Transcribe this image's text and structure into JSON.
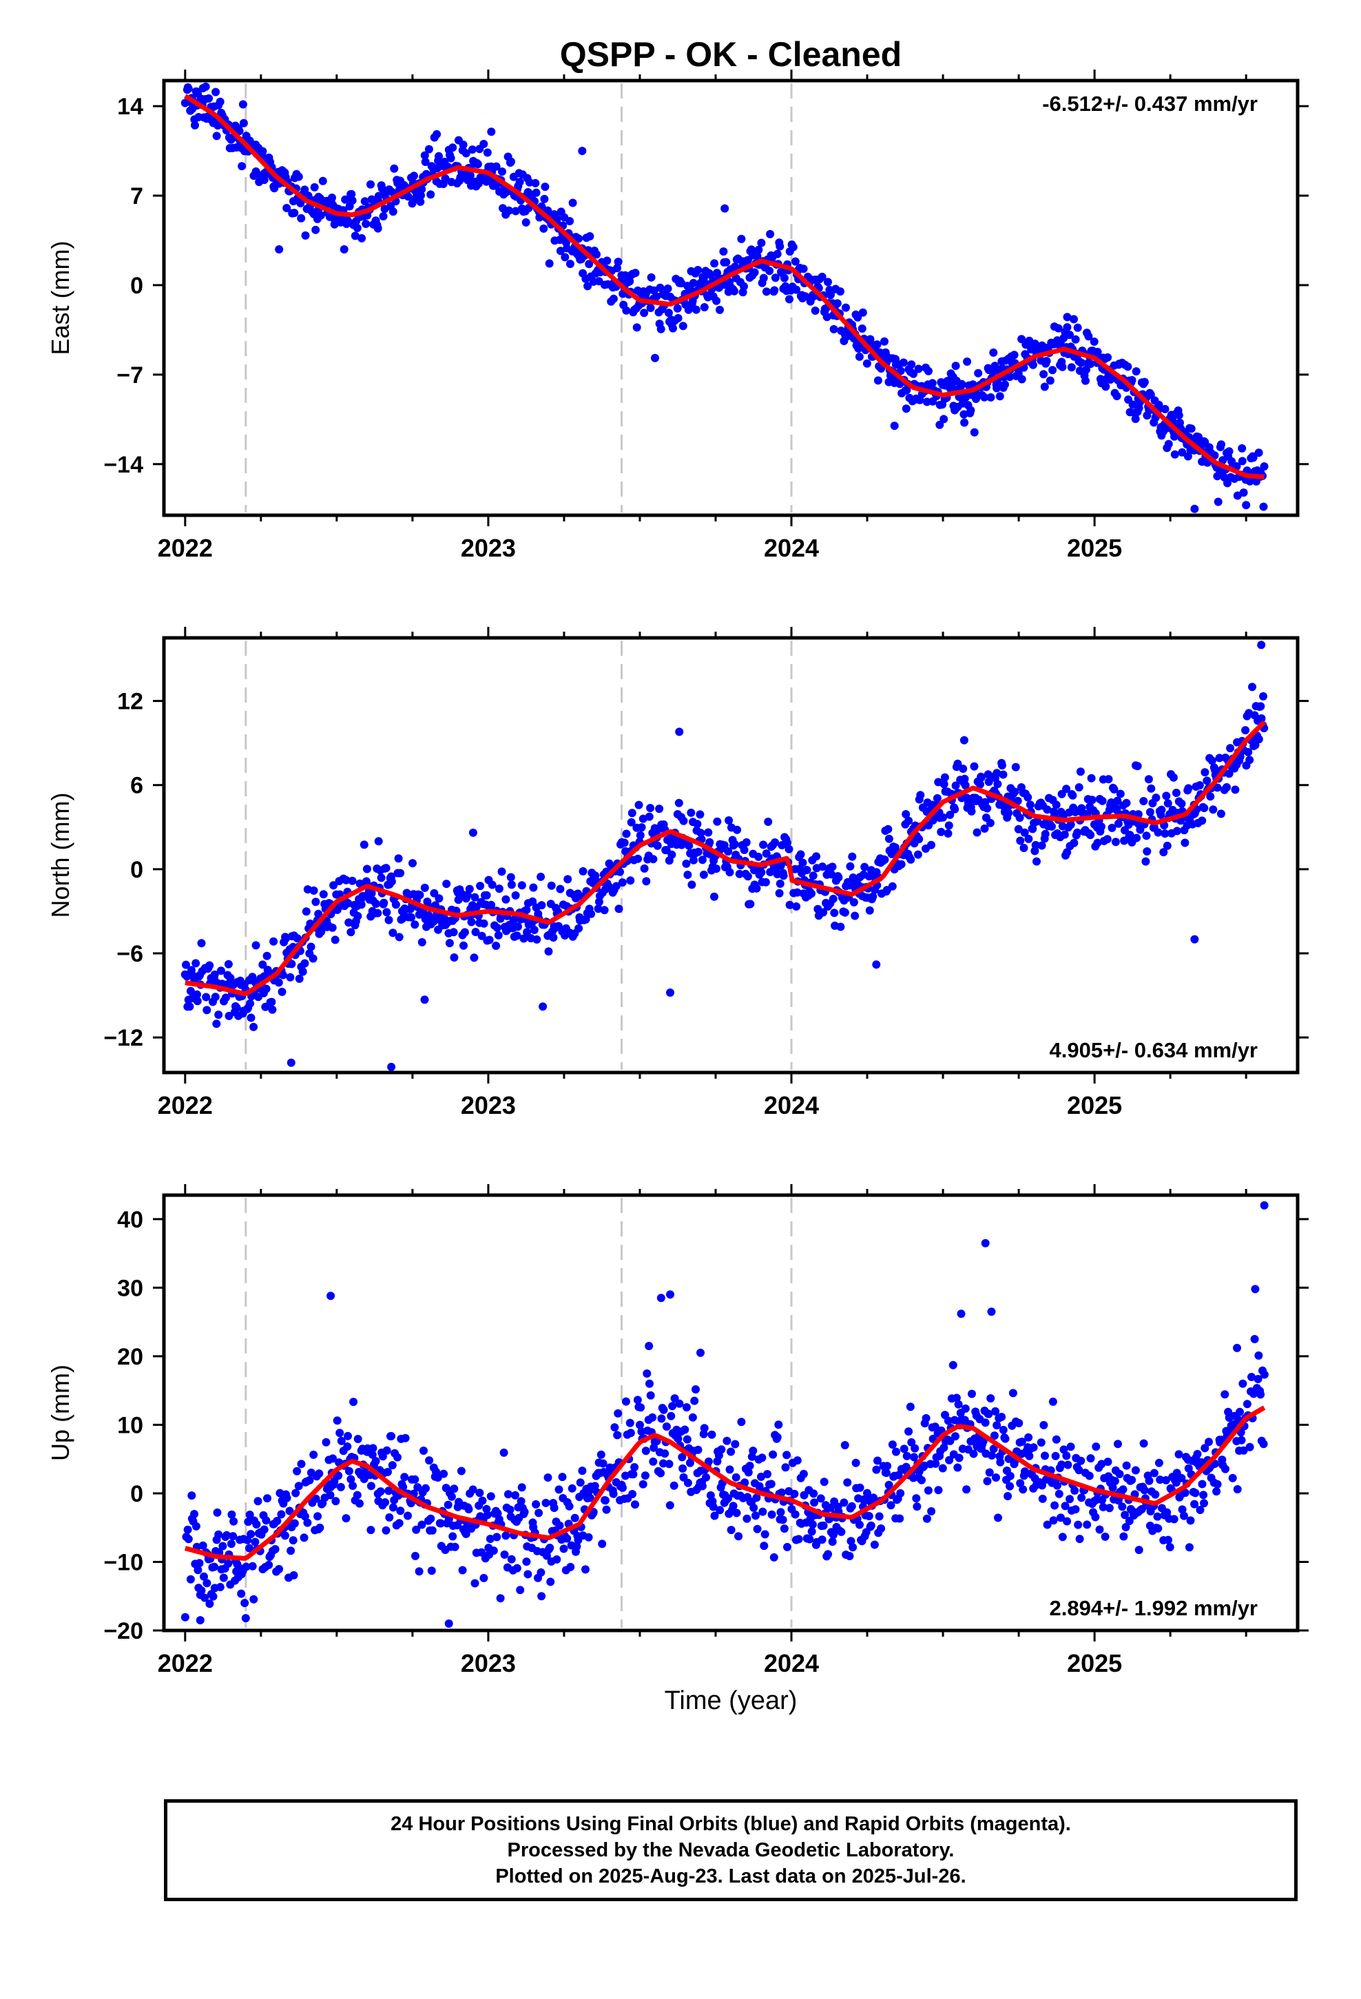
{
  "title": "QSPP  - OK - Cleaned",
  "footer": {
    "line1": "24 Hour Positions Using Final Orbits (blue) and Rapid Orbits (magenta).",
    "line2": "Processed by the Nevada Geodetic Laboratory.",
    "line3": "Plotted on 2025-Aug-23. Last data on 2025-Jul-26."
  },
  "colors": {
    "final_orbits": "#0000ff",
    "rapid_orbits": "#ff00ff",
    "model_fit": "#ff0000",
    "event_lines": "#c8c8c8"
  },
  "chart_data": [
    {
      "type": "scatter",
      "component": "East",
      "ylabel": "East (mm)",
      "xlabel": "",
      "xlim": [
        2021.93,
        2025.67
      ],
      "ylim": [
        -18,
        16
      ],
      "yticks": [
        -14,
        -7,
        0,
        7,
        14
      ],
      "ytick_labels": [
        "−14",
        "−7",
        "0",
        "7",
        "14"
      ],
      "xticks": [
        2022,
        2023,
        2024,
        2025
      ],
      "xtick_labels": [
        "2022",
        "2023",
        "2024",
        "2025"
      ],
      "event_lines": [
        2022.2,
        2023.44,
        2024.0
      ],
      "rate_label": "-6.512+/- 0.437 mm/yr",
      "rate_position": "top-right",
      "noise_sd": 1.0,
      "model": {
        "name": "",
        "x": [
          2022.0,
          2022.1,
          2022.2,
          2022.3,
          2022.4,
          2022.5,
          2022.55,
          2022.6,
          2022.7,
          2022.8,
          2022.9,
          2023.0,
          2023.1,
          2023.2,
          2023.3,
          2023.4,
          2023.45,
          2023.5,
          2023.6,
          2023.7,
          2023.8,
          2023.9,
          2024.0,
          2024.1,
          2024.2,
          2024.3,
          2024.4,
          2024.5,
          2024.6,
          2024.7,
          2024.8,
          2024.9,
          2025.0,
          2025.1,
          2025.2,
          2025.3,
          2025.4,
          2025.5,
          2025.56
        ],
        "y": [
          14.8,
          13.3,
          11.0,
          8.5,
          6.6,
          5.6,
          5.5,
          5.8,
          7.0,
          8.3,
          9.2,
          8.8,
          7.2,
          5.2,
          3.0,
          0.8,
          -0.3,
          -1.2,
          -1.5,
          -0.5,
          0.8,
          1.9,
          1.3,
          -0.9,
          -3.5,
          -6.1,
          -8.0,
          -8.6,
          -8.2,
          -6.9,
          -5.6,
          -5.0,
          -5.7,
          -7.5,
          -9.8,
          -12.0,
          -13.9,
          -14.9,
          -15.0
        ]
      },
      "outliers": [
        {
          "x": 2023.31,
          "y": 10.5
        },
        {
          "x": 2023.78,
          "y": 6.0
        },
        {
          "x": 2023.01,
          "y": 12.0
        },
        {
          "x": 2022.83,
          "y": 11.8
        },
        {
          "x": 2024.91,
          "y": -2.5
        },
        {
          "x": 2025.33,
          "y": -17.5
        },
        {
          "x": 2025.5,
          "y": -17.2
        },
        {
          "x": 2024.34,
          "y": -11.0
        },
        {
          "x": 2023.55,
          "y": -5.7
        },
        {
          "x": 2022.31,
          "y": 2.8
        }
      ]
    },
    {
      "type": "scatter",
      "component": "North",
      "ylabel": "North (mm)",
      "xlabel": "",
      "xlim": [
        2021.93,
        2025.67
      ],
      "ylim": [
        -14.5,
        16.5
      ],
      "yticks": [
        -12,
        -6,
        0,
        6,
        12
      ],
      "ytick_labels": [
        "−12",
        "−6",
        "0",
        "6",
        "12"
      ],
      "xticks": [
        2022,
        2023,
        2024,
        2025
      ],
      "xtick_labels": [
        "2022",
        "2023",
        "2024",
        "2025"
      ],
      "event_lines": [
        2022.2,
        2023.44,
        2024.0
      ],
      "rate_label": "4.905+/- 0.634 mm/yr",
      "rate_position": "bottom-right",
      "noise_sd": 1.25,
      "model": {
        "name": "",
        "x": [
          2022.0,
          2022.1,
          2022.2,
          2022.3,
          2022.4,
          2022.5,
          2022.6,
          2022.7,
          2022.8,
          2022.9,
          2023.0,
          2023.1,
          2023.2,
          2023.3,
          2023.44,
          2023.5,
          2023.6,
          2023.7,
          2023.8,
          2023.9,
          2023.99,
          2024.0,
          2024.1,
          2024.2,
          2024.3,
          2024.4,
          2024.5,
          2024.6,
          2024.7,
          2024.8,
          2024.9,
          2025.0,
          2025.1,
          2025.2,
          2025.3,
          2025.4,
          2025.5,
          2025.56
        ],
        "y": [
          -8.1,
          -8.4,
          -8.9,
          -7.5,
          -4.8,
          -2.3,
          -1.2,
          -1.9,
          -2.8,
          -3.3,
          -3.0,
          -3.2,
          -3.8,
          -2.5,
          0.5,
          1.7,
          2.7,
          1.8,
          0.6,
          0.3,
          0.8,
          -0.8,
          -1.3,
          -1.8,
          -0.6,
          2.5,
          4.8,
          5.8,
          5.0,
          3.8,
          3.5,
          3.7,
          3.8,
          3.3,
          3.9,
          6.3,
          9.2,
          10.5
        ]
      },
      "outliers": [
        {
          "x": 2025.55,
          "y": 16.0
        },
        {
          "x": 2025.52,
          "y": 13.0
        },
        {
          "x": 2023.63,
          "y": 9.8
        },
        {
          "x": 2023.6,
          "y": -8.8
        },
        {
          "x": 2025.33,
          "y": -5.0
        },
        {
          "x": 2022.35,
          "y": -13.8
        },
        {
          "x": 2022.68,
          "y": -14.1
        },
        {
          "x": 2022.79,
          "y": -9.3
        },
        {
          "x": 2022.95,
          "y": 2.6
        },
        {
          "x": 2024.57,
          "y": 9.2
        },
        {
          "x": 2024.28,
          "y": -6.8
        },
        {
          "x": 2023.18,
          "y": -9.8
        }
      ]
    },
    {
      "type": "scatter",
      "component": "Up",
      "ylabel": "Up (mm)",
      "xlabel": "Time (year)",
      "xlim": [
        2021.93,
        2025.67
      ],
      "ylim": [
        -20,
        43.5
      ],
      "yticks": [
        -20,
        -10,
        0,
        10,
        20,
        30,
        40
      ],
      "ytick_labels": [
        "−20",
        "−10",
        "0",
        "10",
        "20",
        "30",
        "40"
      ],
      "xticks": [
        2022,
        2023,
        2024,
        2025
      ],
      "xtick_labels": [
        "2022",
        "2023",
        "2024",
        "2025"
      ],
      "event_lines": [
        2022.2,
        2023.44,
        2024.0
      ],
      "rate_label": "2.894+/- 1.992 mm/yr",
      "rate_position": "bottom-right",
      "noise_sd": 3.8,
      "model": {
        "name": "",
        "x": [
          2022.0,
          2022.1,
          2022.2,
          2022.3,
          2022.4,
          2022.5,
          2022.55,
          2022.6,
          2022.7,
          2022.8,
          2022.9,
          2023.0,
          2023.1,
          2023.2,
          2023.3,
          2023.4,
          2023.5,
          2023.55,
          2023.6,
          2023.7,
          2023.8,
          2023.9,
          2024.0,
          2024.1,
          2024.2,
          2024.3,
          2024.4,
          2024.5,
          2024.55,
          2024.6,
          2024.7,
          2024.8,
          2024.9,
          2025.0,
          2025.1,
          2025.2,
          2025.3,
          2025.4,
          2025.5,
          2025.56
        ],
        "y": [
          -8.0,
          -9.2,
          -9.5,
          -6.0,
          -1.0,
          3.5,
          4.7,
          4.0,
          0.5,
          -2.0,
          -3.5,
          -4.5,
          -5.8,
          -6.5,
          -4.5,
          2.0,
          7.5,
          8.5,
          7.5,
          4.5,
          1.5,
          0.0,
          -1.0,
          -3.0,
          -3.5,
          -1.0,
          3.5,
          8.5,
          9.8,
          9.5,
          6.5,
          3.5,
          2.0,
          0.5,
          -0.5,
          -1.5,
          1.0,
          5.5,
          11.0,
          12.5
        ]
      },
      "outliers": [
        {
          "x": 2025.56,
          "y": 42.0
        },
        {
          "x": 2024.64,
          "y": 36.5
        },
        {
          "x": 2025.53,
          "y": 29.8
        },
        {
          "x": 2022.48,
          "y": 28.8
        },
        {
          "x": 2023.57,
          "y": 28.5
        },
        {
          "x": 2023.6,
          "y": 29.0
        },
        {
          "x": 2024.56,
          "y": 26.2
        },
        {
          "x": 2024.66,
          "y": 26.5
        },
        {
          "x": 2022.87,
          "y": -19.0
        },
        {
          "x": 2022.05,
          "y": -18.5
        },
        {
          "x": 2022.2,
          "y": -18.2
        },
        {
          "x": 2023.53,
          "y": 21.5
        },
        {
          "x": 2025.47,
          "y": 21.2
        },
        {
          "x": 2023.7,
          "y": 20.5
        }
      ]
    }
  ]
}
